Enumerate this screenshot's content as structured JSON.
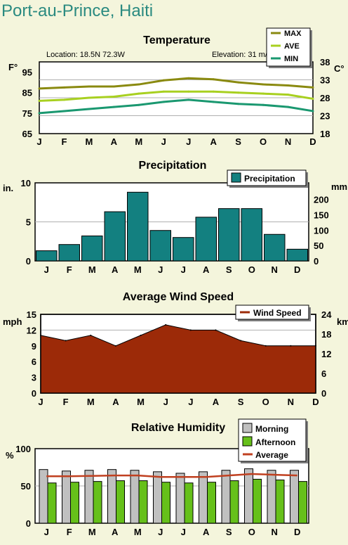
{
  "page_title": "Port-au-Prince, Haiti",
  "months": [
    "J",
    "F",
    "M",
    "A",
    "M",
    "J",
    "J",
    "A",
    "S",
    "O",
    "N",
    "D"
  ],
  "chart_data": [
    {
      "type": "line",
      "title": "Temperature",
      "location_text": "Location: 18.5N 72.3W",
      "elevation_text": "Elevation: 31 m/101 ft",
      "ylabel_left": "F°",
      "ylabel_right": "C°",
      "left_ticks": [
        "95",
        "85",
        "75",
        "65"
      ],
      "right_ticks": [
        "38",
        "33",
        "28",
        "23",
        "18"
      ],
      "ylim": [
        65,
        100
      ],
      "categories": [
        "J",
        "F",
        "M",
        "A",
        "M",
        "J",
        "J",
        "A",
        "S",
        "O",
        "N",
        "D"
      ],
      "series": [
        {
          "name": "MAX",
          "color": "#8a8a10",
          "values": [
            87,
            87.5,
            88,
            88,
            89,
            91,
            92,
            91.5,
            90,
            89,
            88.5,
            87.5
          ]
        },
        {
          "name": "AVE",
          "color": "#a8d020",
          "values": [
            81,
            81.5,
            82.5,
            83,
            84.5,
            85.5,
            85.5,
            85.5,
            85,
            84.5,
            84,
            82
          ]
        },
        {
          "name": "MIN",
          "color": "#1a9870",
          "values": [
            75,
            76,
            77,
            78,
            79,
            80.5,
            81.5,
            80.5,
            79.5,
            79,
            78,
            76
          ]
        }
      ],
      "legend_position": "top-right",
      "grid": true
    },
    {
      "type": "bar",
      "title": "Precipitation",
      "ylabel_left": "in.",
      "ylabel_right": "mm",
      "left_ticks": [
        "10",
        "5",
        "0"
      ],
      "right_ticks": [
        "200",
        "150",
        "100",
        "50",
        "0"
      ],
      "ylim": [
        0,
        10
      ],
      "categories": [
        "J",
        "F",
        "M",
        "A",
        "M",
        "J",
        "J",
        "A",
        "S",
        "O",
        "N",
        "D"
      ],
      "series": [
        {
          "name": "Precipitation",
          "color": "#138080",
          "values": [
            1.3,
            2.1,
            3.2,
            6.3,
            8.8,
            3.9,
            3.0,
            5.6,
            6.7,
            6.7,
            3.4,
            1.5
          ]
        }
      ],
      "legend_position": "top-right",
      "grid": true
    },
    {
      "type": "area",
      "title": "Average Wind Speed",
      "ylabel_left": "mph",
      "ylabel_right": "km",
      "left_ticks": [
        "15",
        "12",
        "9",
        "6",
        "3",
        "0"
      ],
      "right_ticks": [
        "24",
        "18",
        "12",
        "6",
        "0"
      ],
      "ylim": [
        0,
        15
      ],
      "categories": [
        "J",
        "F",
        "M",
        "A",
        "M",
        "J",
        "J",
        "A",
        "S",
        "O",
        "N",
        "D"
      ],
      "series": [
        {
          "name": "Wind Speed",
          "color": "#9c2a08",
          "values": [
            11,
            10,
            11,
            9,
            11,
            13,
            12,
            12,
            10,
            9,
            9,
            9
          ]
        }
      ],
      "legend_position": "top-right",
      "grid": true
    },
    {
      "type": "bar",
      "title": "Relative Humidity",
      "ylabel_left": "%",
      "left_ticks": [
        "100",
        "50",
        "0"
      ],
      "ylim": [
        0,
        100
      ],
      "categories": [
        "J",
        "F",
        "M",
        "A",
        "M",
        "J",
        "J",
        "A",
        "S",
        "O",
        "N",
        "D"
      ],
      "series": [
        {
          "name": "Morning",
          "color": "#c0c0c0",
          "values": [
            72,
            70,
            71,
            72,
            71,
            69,
            67,
            69,
            71,
            73,
            71,
            71
          ]
        },
        {
          "name": "Afternoon",
          "color": "#66c01a",
          "values": [
            54,
            55,
            56,
            57,
            57,
            55,
            54,
            55,
            57,
            59,
            58,
            56
          ]
        },
        {
          "name": "Average",
          "color": "#c04020",
          "values": [
            63,
            63,
            63.5,
            64,
            64,
            62,
            62,
            62,
            64,
            66,
            65,
            64
          ]
        }
      ],
      "legend_position": "top-right",
      "grid": true
    }
  ]
}
